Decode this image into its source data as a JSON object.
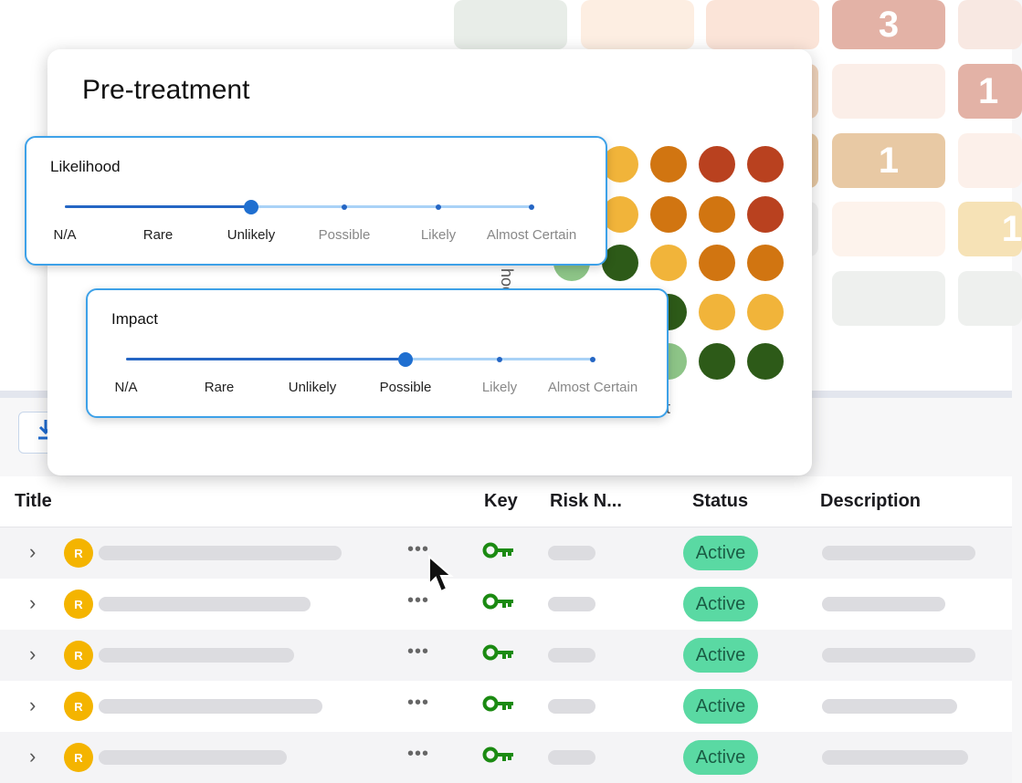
{
  "background_matrix": {
    "cells": [
      {
        "value": ""
      },
      {
        "value": ""
      },
      {
        "value": ""
      },
      {
        "value": "3"
      },
      {
        "value": ""
      },
      {
        "value": "1"
      },
      {
        "value": "1"
      },
      {
        "value": "1"
      }
    ]
  },
  "modal": {
    "title": "Pre-treatment",
    "matrix_ylabel_fragment": "hoo",
    "matrix_xlabel_fragment": "pact",
    "dot_colors": [
      [
        "#f1b43a",
        "#d17511",
        "#b9411f",
        "#b9411f"
      ],
      [
        "#f1b43a",
        "#d17511",
        "#d17511",
        "#b9411f"
      ],
      [
        "#8dc487",
        "#2d5a18",
        "#f1b43a",
        "#d17511",
        "#d17511"
      ],
      [
        "#2d5a18",
        "#f1b43a",
        "#f1b43a"
      ],
      [
        "#8dc487",
        "#2d5a18",
        "#2d5a18"
      ]
    ]
  },
  "likelihood": {
    "title": "Likelihood",
    "options": [
      "N/A",
      "Rare",
      "Unlikely",
      "Possible",
      "Likely",
      "Almost Certain"
    ],
    "selected_index": 2
  },
  "impact": {
    "title": "Impact",
    "options": [
      "N/A",
      "Rare",
      "Unlikely",
      "Possible",
      "Likely",
      "Almost Certain"
    ],
    "selected_index": 3
  },
  "table": {
    "headers": {
      "title": "Title",
      "key": "Key",
      "risk": "Risk N...",
      "status": "Status",
      "description": "Description"
    },
    "rows": [
      {
        "avatar": "R",
        "status": "Active"
      },
      {
        "avatar": "R",
        "status": "Active"
      },
      {
        "avatar": "R",
        "status": "Active"
      },
      {
        "avatar": "R",
        "status": "Active"
      },
      {
        "avatar": "R",
        "status": "Active"
      }
    ]
  },
  "colors": {
    "accent": "#1f6fd0",
    "popup_border": "#3da1e8",
    "status_bg": "#5ad9a3",
    "avatar_bg": "#f4b400",
    "key_icon": "#1b8a12"
  }
}
